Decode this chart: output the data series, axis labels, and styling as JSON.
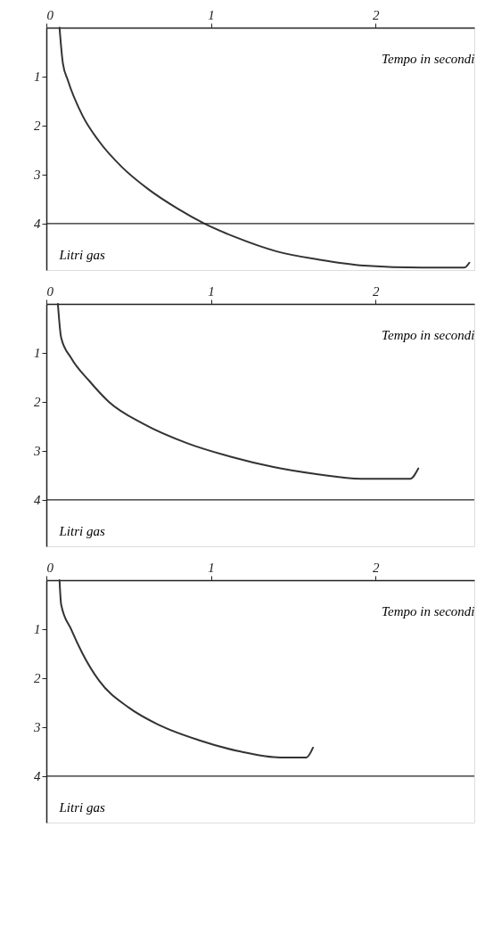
{
  "chart_data": [
    {
      "type": "line",
      "xlabel": "Tempo in secondi",
      "ylabel": "Litri gas",
      "xlim": [
        0,
        2.6
      ],
      "ylim": [
        4.95,
        0
      ],
      "xticks": [
        0,
        1,
        2
      ],
      "yticks": [
        1,
        2,
        3,
        4
      ],
      "ref_lines": [
        {
          "axis": "y",
          "value": 4,
          "color": "#222222"
        }
      ],
      "x": [
        0.08,
        0.1,
        0.13,
        0.22,
        0.32,
        0.46,
        0.62,
        0.8,
        0.96,
        1.15,
        1.4,
        1.66,
        1.93,
        2.28,
        2.54,
        2.57
      ],
      "series": [
        {
          "color": "#333333",
          "values": [
            0,
            0.72,
            1.07,
            1.8,
            2.32,
            2.85,
            3.3,
            3.7,
            4.0,
            4.28,
            4.57,
            4.74,
            4.86,
            4.9,
            4.9,
            4.8
          ]
        }
      ]
    },
    {
      "type": "line",
      "xlabel": "Tempo in secondi",
      "ylabel": "Litri gas",
      "xlim": [
        0,
        2.6
      ],
      "ylim": [
        4.95,
        0
      ],
      "xticks": [
        0,
        1,
        2
      ],
      "yticks": [
        1,
        2,
        3,
        4
      ],
      "ref_lines": [
        {
          "axis": "y",
          "value": 4,
          "color": "#222222"
        }
      ],
      "x": [
        0.07,
        0.09,
        0.15,
        0.26,
        0.38,
        0.59,
        0.86,
        1.12,
        1.38,
        1.65,
        1.91,
        2.21,
        2.26
      ],
      "series": [
        {
          "color": "#333333",
          "values": [
            0,
            0.69,
            1.1,
            1.57,
            2.0,
            2.45,
            2.85,
            3.12,
            3.33,
            3.48,
            3.57,
            3.57,
            3.36
          ]
        }
      ]
    },
    {
      "type": "line",
      "xlabel": "Tempo in secondi",
      "ylabel": "Litri gas",
      "xlim": [
        0,
        2.6
      ],
      "ylim": [
        4.95,
        0
      ],
      "xticks": [
        0,
        1,
        2
      ],
      "yticks": [
        1,
        2,
        3,
        4
      ],
      "ref_lines": [
        {
          "axis": "y",
          "value": 4,
          "color": "#222222"
        }
      ],
      "x": [
        0.08,
        0.09,
        0.15,
        0.22,
        0.32,
        0.5,
        0.68,
        0.93,
        1.18,
        1.42,
        1.58,
        1.62
      ],
      "series": [
        {
          "color": "#333333",
          "values": [
            0,
            0.5,
            1.0,
            1.5,
            2.05,
            2.6,
            2.95,
            3.27,
            3.5,
            3.62,
            3.62,
            3.42
          ]
        }
      ]
    }
  ]
}
